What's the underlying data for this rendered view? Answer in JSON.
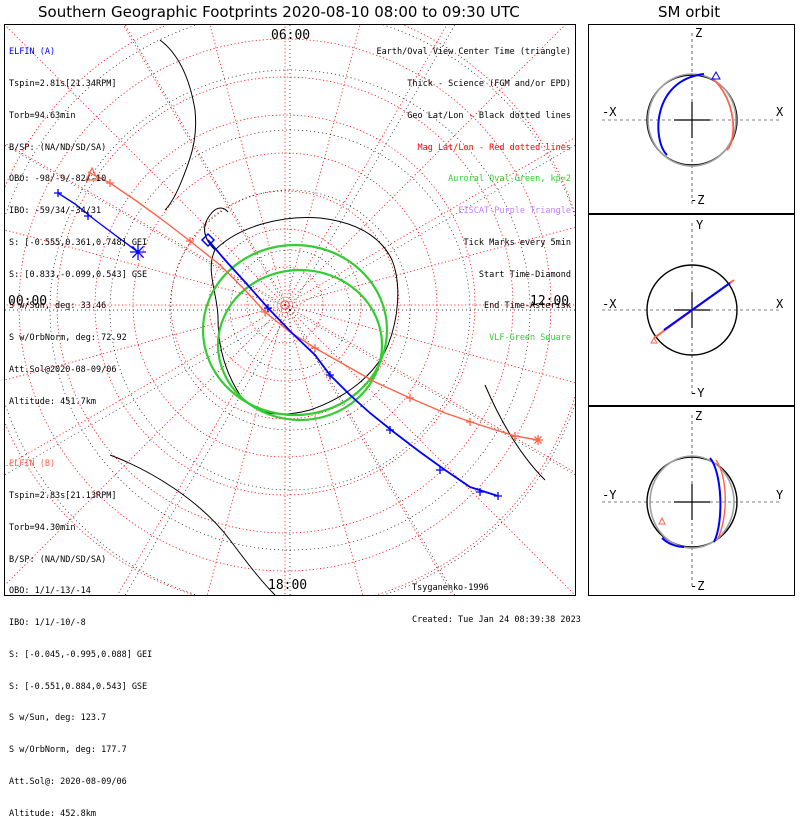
{
  "title": "Southern Geographic Footprints 2020-08-10 08:00 to 09:30 UTC",
  "sm_title": "SM orbit",
  "colors": {
    "elfin_a": "#0000ff",
    "elfin_b": "#ff6347",
    "geo_grid": "#000000",
    "mag_grid": "#ff0000",
    "auroral_oval": "#33cc33",
    "eiscat": "#c080ff",
    "orbit_gray": "#a0a0a0"
  },
  "elfin_a": {
    "name": "ELFIN (A)",
    "lines": [
      "Tspin=2.81s[21.34RPM]",
      "Torb=94.63min",
      "B/SP: (NA/ND/SD/SA)",
      "OBO: -98/-9/-82/-10",
      "IBO: -59/34/-34/31",
      "S: [-0.555,0.361,0.748] GEI",
      "S: [0.833,-0.099,0.543] GSE",
      "S w/Sun, deg: 33.46",
      "S w/OrbNorm, deg: 72.92",
      "Att.Sol@2020-08-09/06",
      "Altitude: 451.7km"
    ]
  },
  "elfin_b": {
    "name": "ELFIN (B)",
    "lines": [
      "Tspin=2.83s[21.13RPM]",
      "Torb=94.30min",
      "B/SP: (NA/ND/SD/SA)",
      "OBO: 1/1/-13/-14",
      "IBO: 1/1/-10/-8",
      "S: [-0.045,-0.995,0.088] GEI",
      "S: [-0.551,0.884,0.543] GSE",
      "S w/Sun, deg: 123.7",
      "S w/OrbNorm, deg: 177.7",
      "Att.Sol@: 2020-08-09/06",
      "Altitude: 452.8km"
    ]
  },
  "legend": [
    {
      "text": "Earth/Oval View Center Time (triangle)",
      "color": "#000000"
    },
    {
      "text": "Thick - Science (FGM and/or EPD)",
      "color": "#000000"
    },
    {
      "text": "Geo Lat/Lon - Black dotted lines",
      "color": "#000000"
    },
    {
      "text": "Mag Lat/Lon - Red dotted lines",
      "color": "#ff0000"
    },
    {
      "text": "Auroral Oval-Green, kp=2",
      "color": "#33cc33"
    },
    {
      "text": "EISCAT-Purple Triangle",
      "color": "#c080ff"
    },
    {
      "text": "Tick Marks every 5min",
      "color": "#000000"
    },
    {
      "text": "Start Time-Diamond",
      "color": "#000000"
    },
    {
      "text": "End Time-Asterisk",
      "color": "#000000"
    },
    {
      "text": "VLF-Green Square",
      "color": "#33cc33"
    }
  ],
  "credits": {
    "author": "Tsyganenko-1996",
    "created": "Created: Tue Jan 24 08:39:38 2023"
  },
  "chart_data": [
    {
      "type": "map",
      "projection": "south polar, geographic",
      "time_labels": {
        "top": "06:00",
        "left": "00:00",
        "right": "12:00",
        "bottom": "18:00"
      },
      "marker_legend": [
        "Start Time-Diamond",
        "End Time-Asterisk",
        "Earth/Oval View Center Time (triangle)"
      ],
      "auroral_oval_kp": 2,
      "tick_interval_min": 5
    },
    {
      "type": "line",
      "panel": "SM orbit X-Z",
      "axes": {
        "up": "Z",
        "down": "-Z",
        "left": "-X",
        "right": "X"
      }
    },
    {
      "type": "line",
      "panel": "SM orbit X-Y",
      "axes": {
        "up": "Y",
        "down": "-Y",
        "left": "-X",
        "right": "X"
      }
    },
    {
      "type": "line",
      "panel": "SM orbit Y-Z",
      "axes": {
        "up": "Z",
        "down": "-Z",
        "left": "-Y",
        "right": "Y"
      }
    }
  ]
}
